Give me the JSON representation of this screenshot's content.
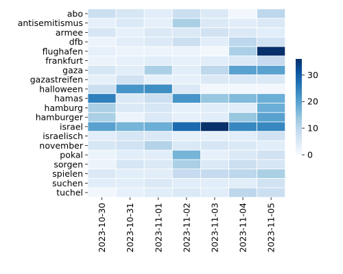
{
  "chart_data": {
    "type": "heatmap",
    "title": "",
    "xlabel": "",
    "ylabel": "",
    "x": [
      "2023-10-30",
      "2023-10-31",
      "2023-11-01",
      "2023-11-02",
      "2023-11-03",
      "2023-11-04",
      "2023-11-05"
    ],
    "y": [
      "abo",
      "antisemitismus",
      "armee",
      "dfb",
      "flughafen",
      "frankfurt",
      "gaza",
      "gazastreifen",
      "halloween",
      "hamas",
      "hamburg",
      "hamburger",
      "israel",
      "israelisch",
      "november",
      "pokal",
      "sorgen",
      "spielen",
      "suchen",
      "tuchel"
    ],
    "values": [
      [
        8,
        6,
        4,
        8,
        5,
        1,
        10
      ],
      [
        3,
        5,
        3,
        12,
        5,
        4,
        5
      ],
      [
        6,
        3,
        5,
        5,
        7,
        5,
        4
      ],
      [
        2,
        4,
        5,
        8,
        4,
        10,
        7
      ],
      [
        3,
        2,
        2,
        2,
        1,
        12,
        36
      ],
      [
        2,
        3,
        4,
        3,
        4,
        5,
        9
      ],
      [
        6,
        4,
        12,
        4,
        10,
        20,
        20
      ],
      [
        3,
        7,
        3,
        3,
        5,
        5,
        5
      ],
      [
        8,
        22,
        23,
        5,
        1,
        1,
        1
      ],
      [
        25,
        5,
        8,
        22,
        14,
        16,
        18
      ],
      [
        12,
        5,
        6,
        3,
        4,
        4,
        18
      ],
      [
        12,
        2,
        5,
        3,
        4,
        14,
        20
      ],
      [
        20,
        17,
        18,
        28,
        36,
        24,
        24
      ],
      [
        4,
        6,
        5,
        3,
        3,
        4,
        7
      ],
      [
        6,
        7,
        11,
        5,
        6,
        5,
        4
      ],
      [
        2,
        4,
        4,
        17,
        3,
        5,
        7
      ],
      [
        2,
        6,
        5,
        12,
        5,
        8,
        6
      ],
      [
        5,
        4,
        4,
        9,
        9,
        10,
        12
      ],
      [
        4,
        4,
        5,
        4,
        4,
        4,
        7
      ],
      [
        1,
        3,
        4,
        5,
        4,
        10,
        8
      ]
    ],
    "colormap": [
      "#f7fbff",
      "#deebf7",
      "#c6dbef",
      "#9ecae1",
      "#6baed6",
      "#4292c6",
      "#2171b5",
      "#08519c",
      "#08306b"
    ],
    "colorbar": {
      "range": [
        0,
        36
      ],
      "ticks": [
        0,
        10,
        20,
        30
      ]
    },
    "grid": true,
    "legend": "colorbar-right"
  }
}
